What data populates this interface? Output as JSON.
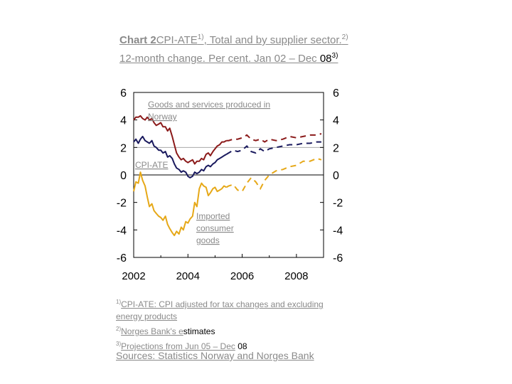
{
  "title": {
    "lead": "Chart 2",
    "name": "CPI-ATE",
    "sup1": "1)",
    "rest": ", Total and by supplier sector.",
    "sup2": "2)",
    "rest2": " 12-month change. Per cent. Jan 02 – Dec",
    "tail": " 08",
    "sup3": "3)"
  },
  "notes": {
    "n1_sup": "1)",
    "n1": "CPI-ATE: CPI adjusted for tax changes and excluding energy products",
    "n2_sup": "2)",
    "n2a": "Norges Bank's e",
    "n2b": "stimates",
    "n3_sup": "3)",
    "n3a": "Projections from Jun 05 – Dec",
    "n3b": " 08"
  },
  "sources": "Sources: Statistics Norway and Norges Bank",
  "chart_data": {
    "type": "line",
    "xlim": [
      2002,
      2009
    ],
    "ylim": [
      -6,
      6
    ],
    "x_ticks": [
      "2002",
      "2004",
      "2006",
      "2008"
    ],
    "y_ticks_left": [
      "6",
      "4",
      "2",
      "0",
      "-2",
      "-4",
      "-6"
    ],
    "y_ticks_right": [
      "6",
      "4",
      "2",
      "0",
      "-2",
      "-4",
      "-6"
    ],
    "projection_start": 2005.42,
    "series": [
      {
        "name": "Goods and services produced in Norway",
        "color": "#8b1a1a",
        "x": [
          2002.0,
          2002.08,
          2002.17,
          2002.25,
          2002.33,
          2002.42,
          2002.5,
          2002.58,
          2002.67,
          2002.75,
          2002.83,
          2002.92,
          2003.0,
          2003.08,
          2003.17,
          2003.25,
          2003.33,
          2003.42,
          2003.5,
          2003.58,
          2003.67,
          2003.75,
          2003.83,
          2003.92,
          2004.0,
          2004.08,
          2004.17,
          2004.25,
          2004.33,
          2004.42,
          2004.5,
          2004.58,
          2004.67,
          2004.75,
          2004.83,
          2004.92,
          2005.0,
          2005.08,
          2005.17,
          2005.25,
          2005.33,
          2005.42,
          2005.5,
          2005.67,
          2005.83,
          2006.0,
          2006.17,
          2006.33,
          2006.5,
          2006.67,
          2006.83,
          2007.0,
          2007.25,
          2007.5,
          2007.75,
          2008.0,
          2008.25,
          2008.5,
          2008.75,
          2008.92
        ],
        "values": [
          4.0,
          4.2,
          4.2,
          4.3,
          4.1,
          4.0,
          4.2,
          4.0,
          4.1,
          3.8,
          3.6,
          3.7,
          3.8,
          3.5,
          3.5,
          3.2,
          3.4,
          2.8,
          2.2,
          1.6,
          1.3,
          1.1,
          1.2,
          1.0,
          0.9,
          1.0,
          1.1,
          0.8,
          1.0,
          1.0,
          1.2,
          1.1,
          1.5,
          1.6,
          1.4,
          1.7,
          1.9,
          2.1,
          2.2,
          2.4,
          2.4,
          2.5,
          2.5,
          2.6,
          2.6,
          2.7,
          2.9,
          2.6,
          2.5,
          2.6,
          2.4,
          2.6,
          2.5,
          2.6,
          2.8,
          2.7,
          2.8,
          2.9,
          2.9,
          3.0
        ]
      },
      {
        "name": "CPI-ATE",
        "color": "#1a1a5e",
        "x": [
          2002.0,
          2002.08,
          2002.17,
          2002.25,
          2002.33,
          2002.42,
          2002.5,
          2002.58,
          2002.67,
          2002.75,
          2002.83,
          2002.92,
          2003.0,
          2003.08,
          2003.17,
          2003.25,
          2003.33,
          2003.42,
          2003.5,
          2003.58,
          2003.67,
          2003.75,
          2003.83,
          2003.92,
          2004.0,
          2004.08,
          2004.17,
          2004.25,
          2004.33,
          2004.42,
          2004.5,
          2004.58,
          2004.67,
          2004.75,
          2004.83,
          2004.92,
          2005.0,
          2005.08,
          2005.17,
          2005.25,
          2005.33,
          2005.42,
          2005.5,
          2005.67,
          2005.83,
          2006.0,
          2006.17,
          2006.33,
          2006.5,
          2006.67,
          2006.83,
          2007.0,
          2007.25,
          2007.5,
          2007.75,
          2008.0,
          2008.25,
          2008.5,
          2008.75,
          2008.92
        ],
        "values": [
          2.4,
          2.6,
          2.3,
          2.6,
          2.8,
          2.5,
          2.4,
          2.3,
          2.5,
          2.1,
          2.0,
          1.8,
          1.8,
          1.6,
          1.7,
          1.3,
          1.4,
          1.2,
          0.8,
          0.5,
          0.4,
          0.2,
          0.3,
          0.2,
          -0.1,
          -0.2,
          -0.1,
          0.2,
          0.1,
          0.2,
          0.4,
          0.3,
          0.6,
          0.7,
          0.6,
          0.8,
          0.9,
          1.1,
          1.2,
          1.3,
          1.4,
          1.5,
          1.6,
          1.8,
          1.7,
          1.8,
          2.1,
          1.7,
          1.6,
          1.9,
          1.7,
          1.9,
          2.0,
          2.1,
          2.2,
          2.2,
          2.3,
          2.3,
          2.4,
          2.4
        ]
      },
      {
        "name": "Imported consumer goods",
        "color": "#e6a817",
        "x": [
          2002.0,
          2002.08,
          2002.17,
          2002.25,
          2002.33,
          2002.42,
          2002.5,
          2002.58,
          2002.67,
          2002.75,
          2002.83,
          2002.92,
          2003.0,
          2003.08,
          2003.17,
          2003.25,
          2003.33,
          2003.42,
          2003.5,
          2003.58,
          2003.67,
          2003.75,
          2003.83,
          2003.92,
          2004.0,
          2004.08,
          2004.17,
          2004.25,
          2004.33,
          2004.42,
          2004.5,
          2004.58,
          2004.67,
          2004.75,
          2004.83,
          2004.92,
          2005.0,
          2005.08,
          2005.17,
          2005.25,
          2005.33,
          2005.42,
          2005.5,
          2005.67,
          2005.83,
          2006.0,
          2006.17,
          2006.33,
          2006.5,
          2006.67,
          2006.83,
          2007.0,
          2007.25,
          2007.5,
          2007.75,
          2008.0,
          2008.25,
          2008.5,
          2008.75,
          2008.92
        ],
        "values": [
          -1.2,
          -0.5,
          -0.6,
          0.2,
          -0.4,
          -0.8,
          -1.6,
          -2.3,
          -2.1,
          -2.6,
          -2.8,
          -3.0,
          -3.1,
          -3.3,
          -3.0,
          -3.6,
          -3.9,
          -4.2,
          -4.4,
          -4.1,
          -4.3,
          -3.8,
          -4.0,
          -3.4,
          -3.5,
          -3.2,
          -3.0,
          -2.0,
          -2.3,
          -1.0,
          -0.6,
          -0.8,
          -0.9,
          -1.5,
          -1.3,
          -1.0,
          -0.9,
          -1.2,
          -1.1,
          -1.0,
          -0.8,
          -0.9,
          -0.8,
          -0.7,
          -1.1,
          -1.2,
          -0.6,
          -0.2,
          -0.5,
          -1.0,
          -0.4,
          0.0,
          0.3,
          0.4,
          0.6,
          0.7,
          1.0,
          1.0,
          1.2,
          1.1
        ]
      }
    ],
    "annotations": [
      "Goods and services produced in Norway",
      "CPI-ATE",
      "Imported consumer goods"
    ]
  }
}
